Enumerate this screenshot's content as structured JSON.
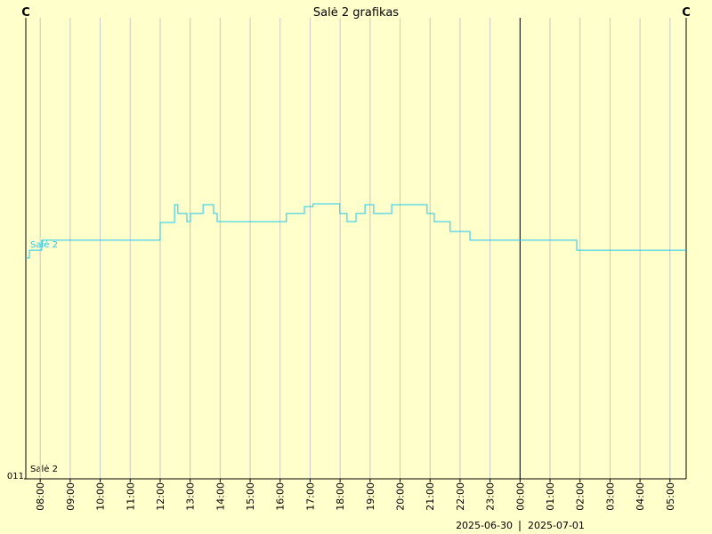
{
  "chart_data": {
    "type": "line",
    "title": "Salė 2 grafikas",
    "y_label": "C",
    "y2_label": "C",
    "step": "post",
    "x": [
      7.52,
      7.64,
      8.05,
      12.0,
      12.48,
      12.59,
      12.89,
      13.01,
      13.43,
      13.78,
      13.9,
      16.21,
      16.81,
      17.1,
      17.99,
      18.23,
      18.53,
      18.83,
      19.12,
      19.72,
      20.9,
      21.14,
      21.67,
      22.33,
      25.89,
      29.54
    ],
    "series": [
      {
        "name": "Salė 2",
        "color": "#1ec8f0",
        "values": [
          20.58,
          20.92,
          21.35,
          22.12,
          22.89,
          22.51,
          22.16,
          22.51,
          22.89,
          22.51,
          22.16,
          22.51,
          22.81,
          22.93,
          22.51,
          22.16,
          22.51,
          22.89,
          22.51,
          22.89,
          22.51,
          22.16,
          21.73,
          21.35,
          20.92,
          20.92
        ]
      }
    ],
    "xlim": [
      7.52,
      29.54
    ],
    "xticks": [
      {
        "value": 8,
        "label": "08:00"
      },
      {
        "value": 9,
        "label": "09:00"
      },
      {
        "value": 10,
        "label": "10:00"
      },
      {
        "value": 11,
        "label": "11:00"
      },
      {
        "value": 12,
        "label": "12:00"
      },
      {
        "value": 13,
        "label": "13:00"
      },
      {
        "value": 14,
        "label": "14:00"
      },
      {
        "value": 15,
        "label": "15:00"
      },
      {
        "value": 16,
        "label": "16:00"
      },
      {
        "value": 17,
        "label": "17:00"
      },
      {
        "value": 18,
        "label": "18:00"
      },
      {
        "value": 19,
        "label": "19:00"
      },
      {
        "value": 20,
        "label": "20:00"
      },
      {
        "value": 21,
        "label": "21:00"
      },
      {
        "value": 22,
        "label": "22:00"
      },
      {
        "value": 23,
        "label": "23:00"
      },
      {
        "value": 24,
        "label": "00:00"
      },
      {
        "value": 25,
        "label": "01:00"
      },
      {
        "value": 26,
        "label": "02:00"
      },
      {
        "value": 27,
        "label": "03:00"
      },
      {
        "value": 28,
        "label": "04:00"
      },
      {
        "value": 29,
        "label": "05:00"
      }
    ],
    "ylim": [
      11,
      31
    ],
    "yticks": [
      {
        "value": 11,
        "label": "011"
      }
    ],
    "grid": true,
    "day_boundary": 24,
    "date_labels": [
      "2025-06-30",
      "2025-07-01"
    ]
  }
}
